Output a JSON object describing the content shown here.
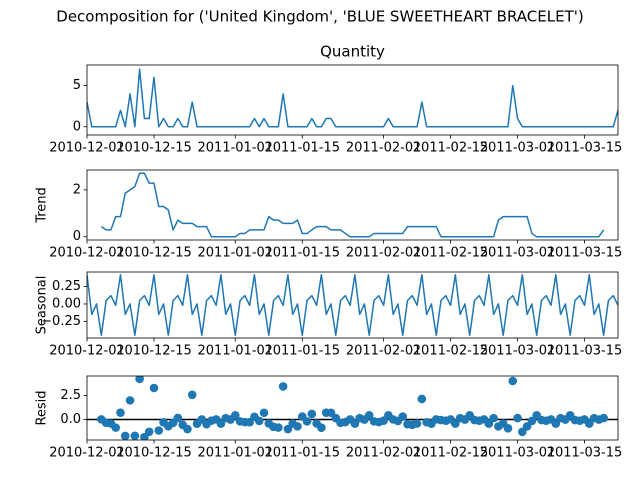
{
  "chart_data": {
    "type": "decomposition",
    "title": "Decomposition for ('United Kingdom', 'BLUE SWEETHEART BRACELET')",
    "x": [
      "2010-12-01",
      "2010-12-02",
      "2010-12-03",
      "2010-12-04",
      "2010-12-05",
      "2010-12-06",
      "2010-12-07",
      "2010-12-08",
      "2010-12-09",
      "2010-12-10",
      "2010-12-11",
      "2010-12-12",
      "2010-12-13",
      "2010-12-14",
      "2010-12-15",
      "2010-12-16",
      "2010-12-17",
      "2010-12-18",
      "2010-12-19",
      "2010-12-20",
      "2010-12-21",
      "2010-12-22",
      "2010-12-23",
      "2010-12-24",
      "2010-12-25",
      "2010-12-26",
      "2010-12-27",
      "2010-12-28",
      "2010-12-29",
      "2010-12-30",
      "2010-12-31",
      "2011-01-01",
      "2011-01-02",
      "2011-01-03",
      "2011-01-04",
      "2011-01-05",
      "2011-01-06",
      "2011-01-07",
      "2011-01-08",
      "2011-01-09",
      "2011-01-10",
      "2011-01-11",
      "2011-01-12",
      "2011-01-13",
      "2011-01-14",
      "2011-01-15",
      "2011-01-16",
      "2011-01-17",
      "2011-01-18",
      "2011-01-19",
      "2011-01-20",
      "2011-01-21",
      "2011-01-22",
      "2011-01-23",
      "2011-01-24",
      "2011-01-25",
      "2011-01-26",
      "2011-01-27",
      "2011-01-28",
      "2011-01-29",
      "2011-01-30",
      "2011-01-31",
      "2011-02-01",
      "2011-02-02",
      "2011-02-03",
      "2011-02-04",
      "2011-02-05",
      "2011-02-06",
      "2011-02-07",
      "2011-02-08",
      "2011-02-09",
      "2011-02-10",
      "2011-02-11",
      "2011-02-12",
      "2011-02-13",
      "2011-02-14",
      "2011-02-15",
      "2011-02-16",
      "2011-02-17",
      "2011-02-18",
      "2011-02-19",
      "2011-02-20",
      "2011-02-21",
      "2011-02-22",
      "2011-02-23",
      "2011-02-24",
      "2011-02-25",
      "2011-02-26",
      "2011-02-27",
      "2011-02-28",
      "2011-03-01",
      "2011-03-02",
      "2011-03-03",
      "2011-03-04",
      "2011-03-05",
      "2011-03-06",
      "2011-03-07",
      "2011-03-08",
      "2011-03-09",
      "2011-03-10",
      "2011-03-11",
      "2011-03-12",
      "2011-03-13",
      "2011-03-14",
      "2011-03-15",
      "2011-03-16",
      "2011-03-17",
      "2011-03-18",
      "2011-03-19",
      "2011-03-20",
      "2011-03-21",
      "2011-03-22"
    ],
    "xlim": [
      "2010-12-01",
      "2011-03-22"
    ],
    "xticks": [
      "2010-12-01",
      "2010-12-15",
      "2011-01-01",
      "2011-01-15",
      "2011-02-01",
      "2011-02-15",
      "2011-03-01",
      "2011-03-15"
    ],
    "panels": [
      {
        "type": "line",
        "title": "Quantity",
        "color": "#1f77b4",
        "ylim": [
          -1,
          7.5
        ],
        "yticks": [
          0,
          5
        ],
        "values": [
          3,
          0,
          0,
          0,
          0,
          0,
          0,
          2,
          0,
          4,
          0,
          7,
          1,
          1,
          6,
          0,
          1,
          0,
          0,
          1,
          0,
          0,
          3,
          0,
          0,
          0,
          0,
          0,
          0,
          0,
          0,
          0,
          0,
          0,
          0,
          1,
          0,
          1,
          0,
          0,
          0,
          4,
          0,
          0,
          0,
          0,
          0,
          1,
          0,
          0,
          1,
          1,
          0,
          0,
          0,
          0,
          0,
          0,
          0,
          0,
          0,
          0,
          0,
          1,
          0,
          0,
          0,
          0,
          0,
          0,
          3,
          0,
          0,
          0,
          0,
          0,
          0,
          0,
          0,
          0,
          0,
          0,
          0,
          0,
          0,
          0,
          0,
          0,
          0,
          5,
          1,
          0,
          0,
          0,
          0,
          0,
          0,
          0,
          0,
          0,
          0,
          0,
          0,
          0,
          0,
          0,
          0,
          0,
          0,
          0,
          0,
          2
        ]
      },
      {
        "type": "line",
        "ylabel": "Trend",
        "color": "#1f77b4",
        "ylim": [
          -0.14,
          2.85
        ],
        "yticks": [
          0,
          2
        ],
        "values": [
          null,
          null,
          null,
          0.43,
          0.29,
          0.29,
          0.86,
          0.86,
          1.86,
          2.0,
          2.14,
          2.71,
          2.71,
          2.29,
          2.29,
          1.29,
          1.29,
          1.14,
          0.29,
          0.71,
          0.57,
          0.57,
          0.57,
          0.43,
          0.43,
          0.43,
          0,
          0,
          0,
          0,
          0,
          0,
          0.14,
          0.14,
          0.29,
          0.29,
          0.29,
          0.29,
          0.86,
          0.71,
          0.71,
          0.57,
          0.57,
          0.57,
          0.71,
          0.14,
          0.14,
          0.29,
          0.43,
          0.43,
          0.43,
          0.29,
          0.29,
          0.29,
          0.14,
          0,
          0,
          0,
          0,
          0,
          0.14,
          0.14,
          0.14,
          0.14,
          0.14,
          0.14,
          0.14,
          0.43,
          0.43,
          0.43,
          0.43,
          0.43,
          0.43,
          0.43,
          0,
          0,
          0,
          0,
          0,
          0,
          0,
          0,
          0,
          0,
          0,
          0,
          0.71,
          0.86,
          0.86,
          0.86,
          0.86,
          0.86,
          0.86,
          0.14,
          0,
          0,
          0,
          0,
          0,
          0,
          0,
          0,
          0,
          0,
          0,
          0,
          0,
          0,
          0.29,
          null,
          null,
          null
        ]
      },
      {
        "type": "line",
        "ylabel": "Seasonal",
        "color": "#1f77b4",
        "ylim": [
          -0.49,
          0.46
        ],
        "yticks": [
          {
            "value": 0.25,
            "label": "0.25"
          },
          {
            "value": 0,
            "label": "0.00"
          },
          {
            "value": -0.25,
            "label": "−0.25"
          }
        ],
        "values": [
          0.42,
          -0.15,
          0,
          -0.45,
          0.05,
          0.12,
          -0.02,
          0.42,
          -0.15,
          0,
          -0.45,
          0.05,
          0.12,
          -0.02,
          0.42,
          -0.15,
          0,
          -0.45,
          0.05,
          0.12,
          -0.02,
          0.42,
          -0.15,
          0,
          -0.45,
          0.05,
          0.12,
          -0.02,
          0.42,
          -0.15,
          0,
          -0.45,
          0.05,
          0.12,
          -0.02,
          0.42,
          -0.15,
          0,
          -0.45,
          0.05,
          0.12,
          -0.02,
          0.42,
          -0.15,
          0,
          -0.45,
          0.05,
          0.12,
          -0.02,
          0.42,
          -0.15,
          0,
          -0.45,
          0.05,
          0.12,
          -0.02,
          0.42,
          -0.15,
          0,
          -0.45,
          0.05,
          0.12,
          -0.02,
          0.42,
          -0.15,
          0,
          -0.45,
          0.05,
          0.12,
          -0.02,
          0.42,
          -0.15,
          0,
          -0.45,
          0.05,
          0.12,
          -0.02,
          0.42,
          -0.15,
          0,
          -0.45,
          0.05,
          0.12,
          -0.02,
          0.42,
          -0.15,
          0,
          -0.45,
          0.05,
          0.12,
          -0.02,
          0.42,
          -0.15,
          0,
          -0.45,
          0.05,
          0.12,
          -0.02,
          0.42,
          -0.15,
          0,
          -0.45,
          0.05,
          0.12,
          -0.02,
          0.42,
          -0.15,
          0,
          -0.45,
          0.05,
          0.12,
          -0.02
        ]
      },
      {
        "type": "scatter",
        "ylabel": "Resid",
        "color": "#1f77b4",
        "zeroline": true,
        "ylim": [
          -2.13,
          4.54
        ],
        "yticks": [
          {
            "value": 2.5,
            "label": "2.5"
          },
          {
            "value": 0,
            "label": "0.0"
          }
        ],
        "values": [
          null,
          null,
          null,
          0.02,
          -0.34,
          -0.41,
          -0.84,
          0.72,
          -1.71,
          2.0,
          -1.69,
          4.24,
          -1.83,
          -1.27,
          3.29,
          -1.14,
          -0.29,
          -0.69,
          -0.34,
          0.17,
          -0.55,
          -0.99,
          2.58,
          -0.43,
          0.02,
          -0.48,
          -0.12,
          0.02,
          -0.42,
          0.15,
          0,
          0.45,
          -0.19,
          -0.26,
          -0.27,
          0.29,
          -0.14,
          0.71,
          -0.41,
          -0.76,
          -0.83,
          3.45,
          -0.99,
          -0.42,
          -0.71,
          0.31,
          -0.19,
          0.59,
          -0.41,
          -0.85,
          0.72,
          0.71,
          0.16,
          -0.34,
          -0.26,
          0.02,
          -0.42,
          0.15,
          0,
          0.45,
          -0.19,
          -0.26,
          -0.12,
          0.44,
          0.01,
          -0.14,
          0.31,
          -0.48,
          -0.55,
          -0.41,
          2.15,
          -0.28,
          -0.43,
          0.02,
          -0.05,
          -0.12,
          0.02,
          -0.42,
          0.15,
          0,
          0.45,
          -0.05,
          -0.12,
          0.02,
          -0.42,
          0.15,
          -0.71,
          -0.41,
          -0.91,
          4.02,
          0.16,
          -1.28,
          -0.71,
          -0.14,
          0.45,
          -0.05,
          -0.12,
          0.02,
          -0.42,
          0.15,
          0,
          0.45,
          -0.05,
          -0.12,
          0.02,
          -0.42,
          0.15,
          0,
          0.16,
          null,
          null,
          null
        ]
      }
    ]
  }
}
